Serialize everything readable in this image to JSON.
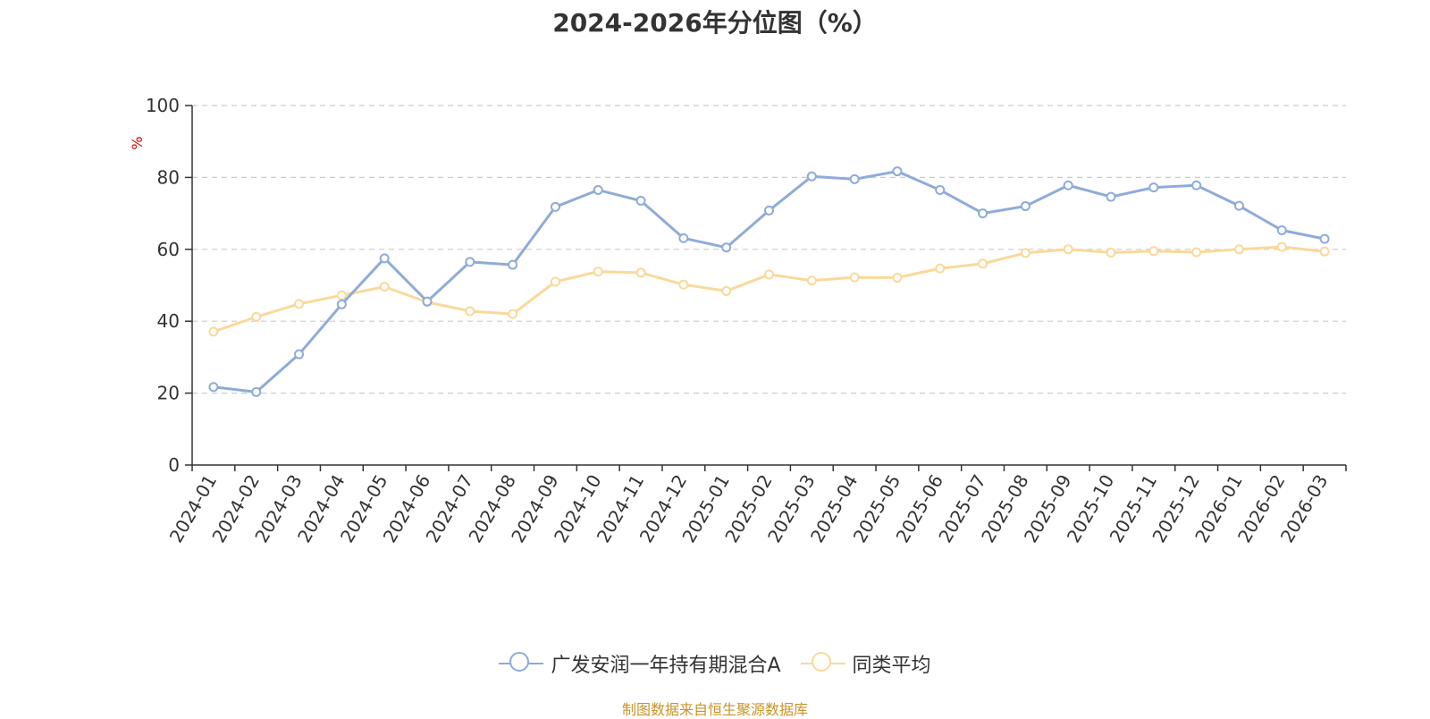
{
  "chart_data": {
    "type": "line",
    "title": "2024-2026年分位图（%）",
    "ylabel": "%",
    "ylim": [
      0,
      100
    ],
    "yticks": [
      0,
      20,
      40,
      60,
      80,
      100
    ],
    "grid": true,
    "legend_position": "bottom",
    "categories": [
      "2024-01",
      "2024-02",
      "2024-03",
      "2024-04",
      "2024-05",
      "2024-06",
      "2024-07",
      "2024-08",
      "2024-09",
      "2024-10",
      "2024-11",
      "2024-12",
      "2025-01",
      "2025-02",
      "2025-03",
      "2025-04",
      "2025-05",
      "2025-06",
      "2025-07",
      "2025-08",
      "2025-09",
      "2025-10",
      "2025-11",
      "2025-12",
      "2026-01",
      "2026-02",
      "2026-03"
    ],
    "series": [
      {
        "name": "广发安润一年持有期混合A",
        "color": "#8fabd9",
        "values": [
          21.7,
          20.3,
          30.8,
          44.7,
          57.5,
          45.5,
          56.5,
          55.7,
          71.8,
          76.5,
          73.5,
          63.1,
          60.5,
          70.8,
          80.3,
          79.5,
          81.7,
          76.5,
          70.0,
          72.0,
          77.8,
          74.6,
          77.2,
          77.8,
          72.1,
          65.3,
          62.9
        ]
      },
      {
        "name": "同类平均",
        "color": "#fad99a",
        "values": [
          37.1,
          41.2,
          44.8,
          47.2,
          49.6,
          45.3,
          42.8,
          42.0,
          51.0,
          53.8,
          53.5,
          50.2,
          48.4,
          53.0,
          51.3,
          52.2,
          52.1,
          54.7,
          56.0,
          59.0,
          60.0,
          59.1,
          59.5,
          59.2,
          60.0,
          60.7,
          59.4
        ]
      }
    ]
  },
  "source_note": "制图数据来自恒生聚源数据库"
}
